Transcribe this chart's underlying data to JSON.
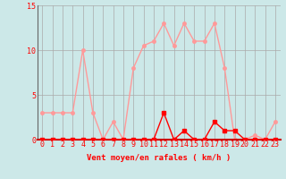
{
  "x": [
    0,
    1,
    2,
    3,
    4,
    5,
    6,
    7,
    8,
    9,
    10,
    11,
    12,
    13,
    14,
    15,
    16,
    17,
    18,
    19,
    20,
    21,
    22,
    23
  ],
  "y_avg": [
    0,
    0,
    0,
    0,
    0,
    0,
    0,
    0,
    0,
    0,
    0,
    0,
    3,
    0,
    1,
    0,
    0,
    2,
    1,
    1,
    0,
    0,
    0,
    0
  ],
  "y_gust": [
    3,
    3,
    3,
    3,
    10,
    3,
    0,
    2,
    0,
    8,
    10.5,
    11,
    13,
    10.5,
    13,
    11,
    11,
    13,
    8,
    0,
    0,
    0.5,
    0,
    2
  ],
  "color_avg": "#ff0000",
  "color_gust": "#ff9999",
  "bg_color": "#cce8e8",
  "grid_color": "#aaaaaa",
  "xlabel": "Vent moyen/en rafales ( km/h )",
  "ylim": [
    0,
    15
  ],
  "xlim": [
    -0.5,
    23.5
  ],
  "yticks": [
    0,
    5,
    10,
    15
  ],
  "xticks": [
    0,
    1,
    2,
    3,
    4,
    5,
    6,
    7,
    8,
    9,
    10,
    11,
    12,
    13,
    14,
    15,
    16,
    17,
    18,
    19,
    20,
    21,
    22,
    23
  ],
  "label_fontsize": 6.5,
  "tick_fontsize": 6,
  "line_width": 1.0,
  "marker_size": 2.5
}
